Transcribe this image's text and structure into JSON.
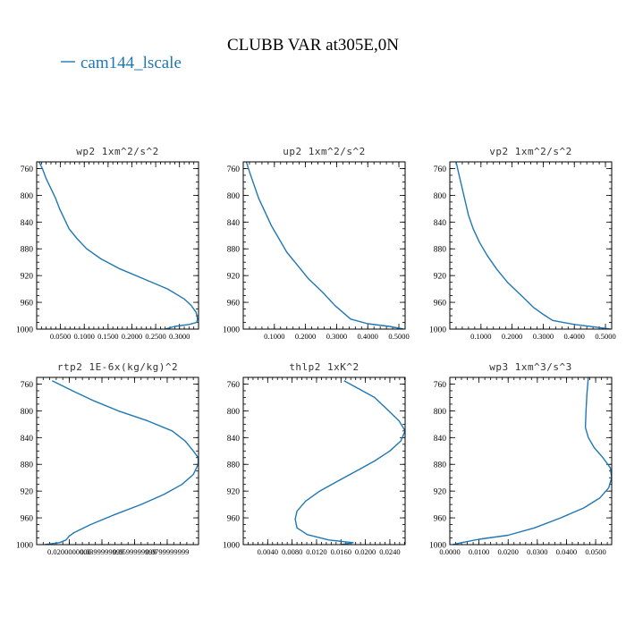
{
  "figure": {
    "title": "CLUBB VAR at305E,0N",
    "legend": {
      "label": "cam144_lscale"
    },
    "colors": {
      "series": "#1f77b4",
      "axes": "#000000",
      "background": "#ffffff"
    }
  },
  "chart_data": [
    {
      "type": "line",
      "title": "wp2  1xm^2/s^2",
      "series": [
        {
          "name": "cam144_lscale"
        }
      ],
      "ylim": [
        1000,
        750
      ],
      "yticks": [
        760,
        800,
        840,
        880,
        920,
        960,
        1000
      ],
      "ytick_labels": [
        "760",
        "800",
        "840",
        "880",
        "920",
        "960",
        "1000"
      ],
      "xlim": [
        0.0,
        0.34
      ],
      "xticks": [
        0.05,
        0.1,
        0.15,
        0.2,
        0.25,
        0.3
      ],
      "xtick_labels": [
        "0.0500",
        "0.1000",
        "0.1500",
        "0.2000",
        "0.2500",
        "0.3000"
      ],
      "x": [
        0.005,
        0.012,
        0.02,
        0.03,
        0.04,
        0.048,
        0.058,
        0.068,
        0.085,
        0.105,
        0.135,
        0.175,
        0.225,
        0.275,
        0.31,
        0.325,
        0.335,
        0.338,
        0.336,
        0.32,
        0.29,
        0.27
      ],
      "y": [
        750,
        760,
        775,
        790,
        805,
        820,
        835,
        850,
        865,
        880,
        895,
        910,
        925,
        940,
        955,
        965,
        975,
        985,
        990,
        993,
        996,
        1000
      ]
    },
    {
      "type": "line",
      "title": "up2  1xm^2/s^2",
      "series": [
        {
          "name": "cam144_lscale"
        }
      ],
      "ylim": [
        1000,
        750
      ],
      "yticks": [
        760,
        800,
        840,
        880,
        920,
        960,
        1000
      ],
      "ytick_labels": [
        "760",
        "800",
        "840",
        "880",
        "920",
        "960",
        "1000"
      ],
      "xlim": [
        0.0,
        0.52
      ],
      "xticks": [
        0.1,
        0.2,
        0.3,
        0.4,
        0.5
      ],
      "xtick_labels": [
        "0.1000",
        "0.2000",
        "0.3000",
        "0.4000",
        "0.5000"
      ],
      "x": [
        0.01,
        0.02,
        0.035,
        0.05,
        0.07,
        0.09,
        0.115,
        0.14,
        0.175,
        0.21,
        0.255,
        0.295,
        0.32,
        0.345,
        0.4,
        0.47,
        0.515
      ],
      "y": [
        750,
        765,
        785,
        805,
        825,
        845,
        865,
        885,
        905,
        925,
        945,
        965,
        975,
        985,
        992,
        996,
        1000
      ]
    },
    {
      "type": "line",
      "title": "vp2  1xm^2/s^2",
      "series": [
        {
          "name": "cam144_lscale"
        }
      ],
      "ylim": [
        1000,
        750
      ],
      "yticks": [
        760,
        800,
        840,
        880,
        920,
        960,
        1000
      ],
      "ytick_labels": [
        "760",
        "800",
        "840",
        "880",
        "920",
        "960",
        "1000"
      ],
      "xlim": [
        0.0,
        0.52
      ],
      "xticks": [
        0.1,
        0.2,
        0.3,
        0.4,
        0.5
      ],
      "xtick_labels": [
        "0.1000",
        "0.2000",
        "0.3000",
        "0.4000",
        "0.5000"
      ],
      "x": [
        0.02,
        0.03,
        0.04,
        0.05,
        0.06,
        0.075,
        0.095,
        0.12,
        0.15,
        0.185,
        0.23,
        0.27,
        0.3,
        0.33,
        0.4,
        0.47,
        0.515
      ],
      "y": [
        750,
        770,
        790,
        810,
        830,
        850,
        870,
        890,
        910,
        930,
        950,
        968,
        978,
        987,
        993,
        997,
        1000
      ]
    },
    {
      "type": "line",
      "title": "rtp2  1E-6x(kg/kg)^2",
      "series": [
        {
          "name": "cam144_lscale"
        }
      ],
      "ylim": [
        1000,
        750
      ],
      "yticks": [
        760,
        800,
        840,
        880,
        920,
        960,
        1000
      ],
      "ytick_labels": [
        "760",
        "800",
        "840",
        "880",
        "920",
        "960",
        "1000"
      ],
      "xlim": [
        0.0,
        0.0992
      ],
      "xticks": [
        0.02,
        0.04,
        0.06,
        0.08
      ],
      "xtick_labels": [
        "0.0200000000",
        "0.0399999999",
        "0.0599999999",
        "0.0799999999"
      ],
      "x": [
        0.0095,
        0.022,
        0.035,
        0.05,
        0.068,
        0.083,
        0.091,
        0.096,
        0.099,
        0.099,
        0.096,
        0.089,
        0.078,
        0.064,
        0.048,
        0.033,
        0.023,
        0.02,
        0.018,
        0.014,
        0.005
      ],
      "y": [
        755,
        770,
        785,
        800,
        815,
        830,
        845,
        860,
        870,
        880,
        895,
        910,
        925,
        940,
        955,
        970,
        982,
        987,
        993,
        997,
        1000
      ]
    },
    {
      "type": "line",
      "title": "thlp2  1xK^2",
      "series": [
        {
          "name": "cam144_lscale"
        }
      ],
      "ylim": [
        1000,
        750
      ],
      "yticks": [
        760,
        800,
        840,
        880,
        920,
        960,
        1000
      ],
      "ytick_labels": [
        "760",
        "800",
        "840",
        "880",
        "920",
        "960",
        "1000"
      ],
      "xlim": [
        0.0,
        0.0265
      ],
      "xticks": [
        0.004,
        0.008,
        0.012,
        0.016,
        0.02,
        0.024
      ],
      "xtick_labels": [
        "0.0040",
        "0.0080",
        "0.0120",
        "0.0160",
        "0.0200",
        "0.0240"
      ],
      "x": [
        0.0165,
        0.0185,
        0.0215,
        0.0238,
        0.0255,
        0.0265,
        0.0258,
        0.024,
        0.0215,
        0.0185,
        0.0155,
        0.0125,
        0.0102,
        0.0088,
        0.0085,
        0.0088,
        0.0105,
        0.014,
        0.018,
        0.016
      ],
      "y": [
        755,
        765,
        780,
        800,
        815,
        830,
        845,
        860,
        875,
        890,
        905,
        920,
        935,
        950,
        962,
        975,
        985,
        993,
        997,
        1000
      ]
    },
    {
      "type": "line",
      "title": "wp3  1xm^3/s^3",
      "series": [
        {
          "name": "cam144_lscale"
        }
      ],
      "ylim": [
        1000,
        750
      ],
      "yticks": [
        760,
        800,
        840,
        880,
        920,
        960,
        1000
      ],
      "ytick_labels": [
        "760",
        "800",
        "840",
        "880",
        "920",
        "960",
        "1000"
      ],
      "xlim": [
        0.0,
        0.0555
      ],
      "xticks": [
        0.0,
        0.01,
        0.02,
        0.03,
        0.04,
        0.05
      ],
      "xtick_labels": [
        "0.0000",
        "0.0100",
        "0.0200",
        "0.0300",
        "0.0400",
        "0.0500"
      ],
      "x": [
        0.0475,
        0.047,
        0.0467,
        0.0465,
        0.0475,
        0.0495,
        0.0525,
        0.055,
        0.0555,
        0.0545,
        0.0515,
        0.046,
        0.038,
        0.029,
        0.02,
        0.01,
        0.004,
        0.001
      ],
      "y": [
        750,
        775,
        800,
        825,
        840,
        855,
        870,
        885,
        900,
        915,
        930,
        945,
        960,
        975,
        986,
        992,
        997,
        1000
      ]
    }
  ]
}
